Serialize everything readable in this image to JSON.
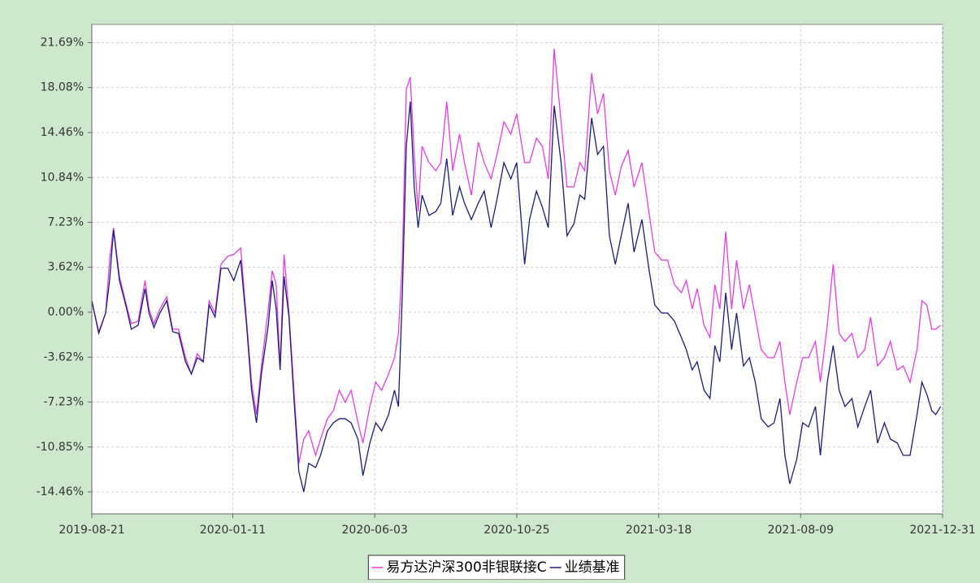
{
  "chart_data": {
    "type": "line",
    "x": [
      "2019-08-21",
      "2019-08-28",
      "2019-09-04",
      "2019-09-08",
      "2019-09-12",
      "2019-09-18",
      "2019-09-25",
      "2019-09-30",
      "2019-10-07",
      "2019-10-14",
      "2019-10-18",
      "2019-10-23",
      "2019-10-29",
      "2019-11-05",
      "2019-11-11",
      "2019-11-17",
      "2019-11-24",
      "2019-11-30",
      "2019-12-06",
      "2019-12-12",
      "2019-12-18",
      "2019-12-24",
      "2019-12-30",
      "2020-01-06",
      "2020-01-12",
      "2020-01-19",
      "2020-01-25",
      "2020-01-30",
      "2020-02-04",
      "2020-02-09",
      "2020-02-16",
      "2020-02-20",
      "2020-02-24",
      "2020-02-28",
      "2020-03-03",
      "2020-03-08",
      "2020-03-13",
      "2020-03-18",
      "2020-03-23",
      "2020-03-28",
      "2020-04-04",
      "2020-04-09",
      "2020-04-16",
      "2020-04-22",
      "2020-04-28",
      "2020-05-04",
      "2020-05-10",
      "2020-05-17",
      "2020-05-22",
      "2020-05-29",
      "2020-06-04",
      "2020-06-10",
      "2020-06-17",
      "2020-06-23",
      "2020-06-27",
      "2020-07-01",
      "2020-07-05",
      "2020-07-09",
      "2020-07-13",
      "2020-07-17",
      "2020-07-21",
      "2020-07-28",
      "2020-08-04",
      "2020-08-09",
      "2020-08-15",
      "2020-08-21",
      "2020-08-28",
      "2020-09-02",
      "2020-09-09",
      "2020-09-16",
      "2020-09-22",
      "2020-09-29",
      "2020-10-05",
      "2020-10-12",
      "2020-10-19",
      "2020-10-25",
      "2020-11-02",
      "2020-11-07",
      "2020-11-14",
      "2020-11-20",
      "2020-11-26",
      "2020-12-02",
      "2020-12-09",
      "2020-12-15",
      "2020-12-22",
      "2020-12-28",
      "2021-01-02",
      "2021-01-09",
      "2021-01-15",
      "2021-01-21",
      "2021-01-27",
      "2021-02-02",
      "2021-02-08",
      "2021-02-15",
      "2021-02-21",
      "2021-03-01",
      "2021-03-08",
      "2021-03-14",
      "2021-03-21",
      "2021-03-27",
      "2021-04-03",
      "2021-04-10",
      "2021-04-15",
      "2021-04-21",
      "2021-04-26",
      "2021-05-03",
      "2021-05-09",
      "2021-05-14",
      "2021-05-19",
      "2021-05-25",
      "2021-05-31",
      "2021-06-05",
      "2021-06-12",
      "2021-06-18",
      "2021-06-24",
      "2021-06-30",
      "2021-07-07",
      "2021-07-13",
      "2021-07-19",
      "2021-07-24",
      "2021-07-29",
      "2021-08-05",
      "2021-08-11",
      "2021-08-17",
      "2021-08-24",
      "2021-08-29",
      "2021-09-05",
      "2021-09-11",
      "2021-09-17",
      "2021-09-23",
      "2021-09-30",
      "2021-10-06",
      "2021-10-13",
      "2021-10-19",
      "2021-10-26",
      "2021-11-02",
      "2021-11-08",
      "2021-11-15",
      "2021-11-21",
      "2021-11-28",
      "2021-12-05",
      "2021-12-10",
      "2021-12-15",
      "2021-12-20",
      "2021-12-24",
      "2021-12-29"
    ],
    "series": [
      {
        "name": "易方达沪深300非银联接C",
        "color": "#e23ee2",
        "values": [
          0.92,
          -1.57,
          -0.07,
          4.19,
          6.8,
          2.88,
          0.59,
          -0.92,
          -0.72,
          2.55,
          0.26,
          -0.92,
          0.26,
          1.24,
          -1.37,
          -1.37,
          -3.66,
          -4.97,
          -3.34,
          -3.99,
          0.92,
          -0.07,
          3.86,
          4.51,
          4.65,
          5.17,
          -0.72,
          -5.63,
          -8.24,
          -4.32,
          0.26,
          3.34,
          2.22,
          -4.32,
          4.65,
          -0.07,
          -6.28,
          -12.17,
          -10.21,
          -9.55,
          -11.52,
          -10.21,
          -8.57,
          -7.92,
          -6.28,
          -7.26,
          -6.28,
          -8.9,
          -10.53,
          -7.59,
          -5.63,
          -6.28,
          -4.97,
          -3.66,
          -1.7,
          4.19,
          17.93,
          18.91,
          12.69,
          8.11,
          13.35,
          12.04,
          11.38,
          12.04,
          16.95,
          11.38,
          14.33,
          12.04,
          9.42,
          13.67,
          12.04,
          10.73,
          12.69,
          15.31,
          14.33,
          15.96,
          12.04,
          12.04,
          14.0,
          13.35,
          10.73,
          21.2,
          15.31,
          10.08,
          10.08,
          12.04,
          11.38,
          19.24,
          15.96,
          17.6,
          11.38,
          9.42,
          11.71,
          13.02,
          10.08,
          12.04,
          8.11,
          4.84,
          4.19,
          4.19,
          2.22,
          1.57,
          2.55,
          0.26,
          1.9,
          -1.05,
          -2.03,
          2.22,
          0.26,
          6.48,
          0.26,
          4.19,
          0.26,
          2.22,
          -0.39,
          -3.01,
          -3.66,
          -3.66,
          -2.36,
          -5.63,
          -8.24,
          -5.63,
          -3.66,
          -3.66,
          -2.36,
          -5.63,
          -1.05,
          3.86,
          -1.7,
          -2.36,
          -1.7,
          -3.66,
          -3.01,
          -0.39,
          -4.32,
          -3.66,
          -2.36,
          -4.65,
          -4.32,
          -5.63,
          -3.01,
          0.92,
          0.59,
          -1.37,
          -1.37,
          -1.05
        ]
      },
      {
        "name": "业绩基准",
        "color": "#1c1c78",
        "values": [
          0.92,
          -1.7,
          -0.07,
          2.55,
          6.61,
          2.55,
          0.39,
          -1.37,
          -1.05,
          1.9,
          -0.07,
          -1.24,
          -0.07,
          0.92,
          -1.57,
          -1.7,
          -3.99,
          -4.97,
          -3.66,
          -3.99,
          0.59,
          -0.39,
          3.53,
          3.53,
          2.55,
          4.19,
          -1.05,
          -6.28,
          -8.9,
          -4.97,
          -1.05,
          2.55,
          0.26,
          -4.65,
          2.88,
          -0.39,
          -6.94,
          -12.82,
          -14.46,
          -12.17,
          -12.5,
          -11.52,
          -9.55,
          -8.9,
          -8.57,
          -8.57,
          -8.9,
          -10.21,
          -13.15,
          -10.53,
          -8.9,
          -9.55,
          -8.24,
          -6.28,
          -7.59,
          1.57,
          13.35,
          16.95,
          10.08,
          6.8,
          9.42,
          7.79,
          8.11,
          8.77,
          12.37,
          7.79,
          10.08,
          8.77,
          7.46,
          8.77,
          9.75,
          6.8,
          9.09,
          12.04,
          10.73,
          12.04,
          3.86,
          7.46,
          9.75,
          8.44,
          6.8,
          16.62,
          12.04,
          6.15,
          7.13,
          9.42,
          9.09,
          15.64,
          12.69,
          13.35,
          6.15,
          3.86,
          6.15,
          8.77,
          4.84,
          7.46,
          3.53,
          0.59,
          -0.07,
          -0.07,
          -0.72,
          -2.03,
          -3.01,
          -4.65,
          -3.99,
          -6.28,
          -6.94,
          -2.68,
          -3.99,
          1.57,
          -3.01,
          -0.07,
          -4.32,
          -3.66,
          -5.63,
          -8.57,
          -9.23,
          -8.9,
          -6.94,
          -11.52,
          -13.81,
          -11.84,
          -8.9,
          -9.23,
          -7.59,
          -11.52,
          -5.63,
          -2.68,
          -6.28,
          -7.59,
          -6.94,
          -9.23,
          -7.59,
          -6.28,
          -10.53,
          -8.9,
          -10.21,
          -10.53,
          -11.52,
          -11.52,
          -8.24,
          -5.63,
          -6.61,
          -7.92,
          -8.24,
          -7.59
        ]
      }
    ],
    "xlim": [
      "2019-08-21",
      "2021-12-31"
    ],
    "xticks": [
      "2019-08-21",
      "2020-01-11",
      "2020-06-03",
      "2020-10-25",
      "2021-03-18",
      "2021-08-09",
      "2021-12-31"
    ],
    "ylim": [
      -16.23,
      23.16
    ],
    "yticks": [
      {
        "value": -14.46,
        "label": "-14.46%"
      },
      {
        "value": -10.85,
        "label": "-10.85%"
      },
      {
        "value": -7.23,
        "label": "-7.23%"
      },
      {
        "value": -3.62,
        "label": "-3.62%"
      },
      {
        "value": 0,
        "label": "0.00%"
      },
      {
        "value": 3.62,
        "label": "3.62%"
      },
      {
        "value": 7.23,
        "label": "7.23%"
      },
      {
        "value": 10.84,
        "label": "10.84%"
      },
      {
        "value": 14.46,
        "label": "14.46%"
      },
      {
        "value": 18.08,
        "label": "18.08%"
      },
      {
        "value": 21.69,
        "label": "21.69%"
      }
    ],
    "grid": true,
    "legend": "bottom"
  }
}
